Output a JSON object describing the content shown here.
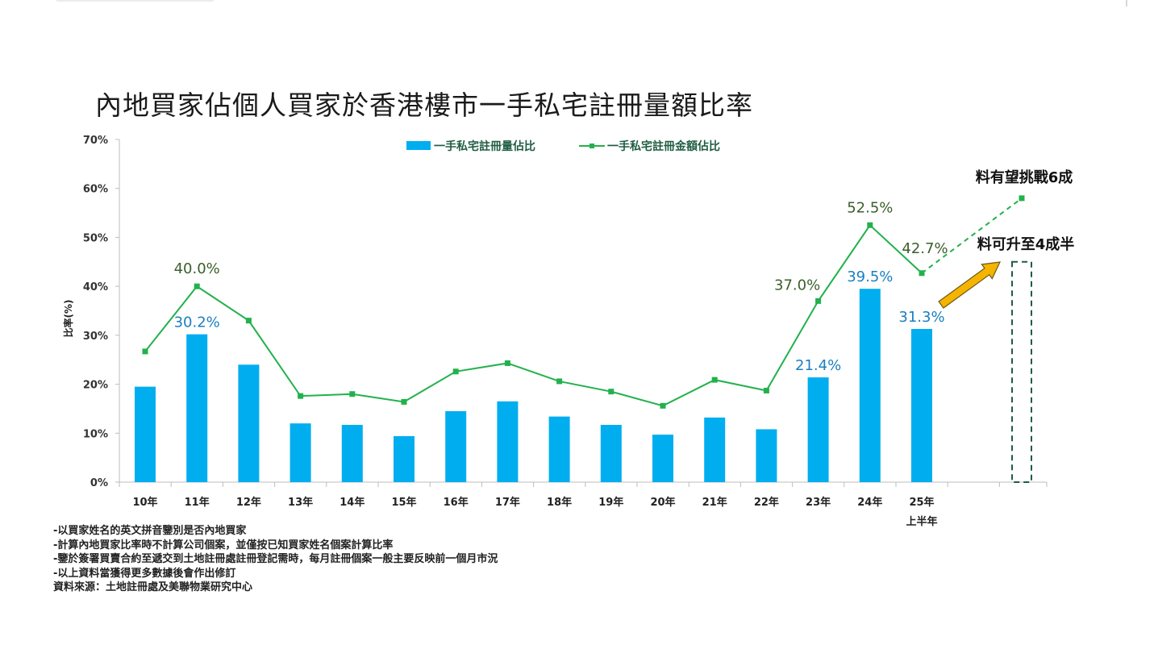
{
  "title": "內地買家佔個人買家於香港樓市一手私宅註冊量額比率",
  "chart_data": {
    "type": "bar+line",
    "categories": [
      "10年",
      "11年",
      "12年",
      "13年",
      "14年",
      "15年",
      "16年",
      "17年",
      "18年",
      "19年",
      "20年",
      "21年",
      "22年",
      "23年",
      "24年",
      "25年"
    ],
    "category_sublabels": {
      "25年": "上半年"
    },
    "ylabel": "比率(%)",
    "ylim": [
      0,
      70
    ],
    "yticks": [
      "0%",
      "10%",
      "20%",
      "30%",
      "40%",
      "50%",
      "60%",
      "70%"
    ],
    "series": [
      {
        "name": "一手私宅註冊量佔比",
        "type": "bar",
        "color": "#00aeef",
        "values": [
          19.5,
          30.2,
          24.0,
          12.0,
          11.7,
          9.4,
          14.5,
          16.5,
          13.4,
          11.7,
          9.7,
          13.2,
          10.8,
          21.4,
          39.5,
          31.3
        ],
        "labels": {
          "1": "30.2%",
          "13": "21.4%",
          "14": "39.5%",
          "15": "31.3%"
        },
        "label_color": "#1a7fc1"
      },
      {
        "name": "一手私宅註冊金額佔比",
        "type": "line",
        "color": "#22b14c",
        "values": [
          26.7,
          40.0,
          33.0,
          17.6,
          18.0,
          16.4,
          22.6,
          24.3,
          20.6,
          18.5,
          15.6,
          20.9,
          18.7,
          37.0,
          52.5,
          42.7
        ],
        "labels": {
          "1": "40.0%",
          "13": "37.0%",
          "14": "52.5%",
          "15": "42.7%"
        },
        "label_color": "#3b5e2b"
      }
    ],
    "forecast": {
      "line_target": 58,
      "line_label": "料有望挑戰6成",
      "bar_label": "料可升至4成半",
      "bar_value": 45
    },
    "legend_position": "top-center"
  },
  "notes": [
    "-以買家姓名的英文拼音鑒別是否內地買家",
    "-計算內地買家比率時不計算公司個案，並僅按已知買家姓名個案計算比率",
    "-鑒於簽署買賣合約至遞交到土地註冊處註冊登記需時，每月註冊個案一般主要反映前一個月市況",
    "-以上資料當獲得更多數據後會作出修訂",
    "資料來源：土地註冊處及美聯物業研究中心"
  ]
}
